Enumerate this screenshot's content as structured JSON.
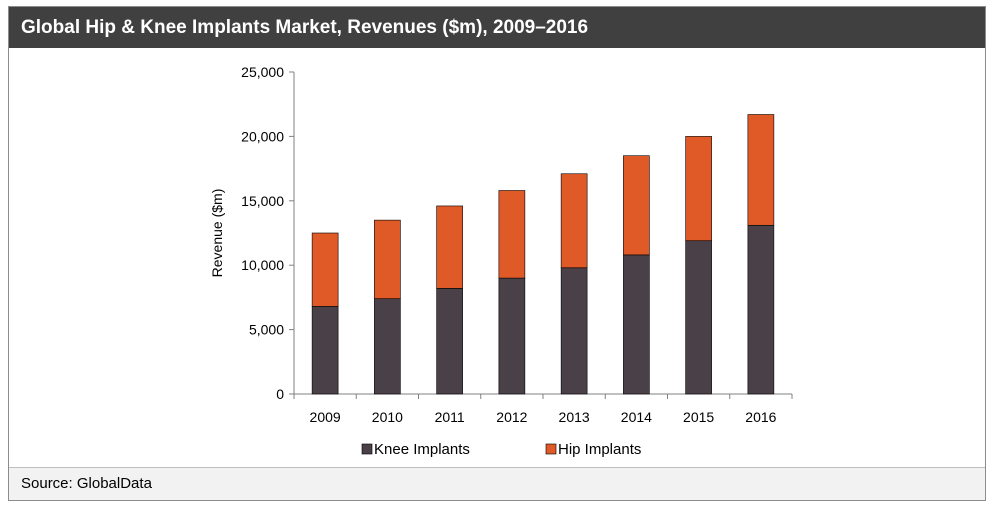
{
  "header": {
    "title": "Global Hip  & Knee Implants Market, Revenues ($m), 2009–2016"
  },
  "footer": {
    "source": "Source: GlobalData"
  },
  "colors": {
    "knee": "#4a4048",
    "hip": "#e05a28",
    "title_bg": "#404040"
  },
  "chart_data": {
    "type": "bar",
    "stacked": true,
    "categories": [
      "2009",
      "2010",
      "2011",
      "2012",
      "2013",
      "2014",
      "2015",
      "2016"
    ],
    "series": [
      {
        "name": "Knee Implants",
        "values": [
          6800,
          7400,
          8200,
          9000,
          9800,
          10800,
          11900,
          13100
        ]
      },
      {
        "name": "Hip Implants",
        "values": [
          5700,
          6100,
          6400,
          6800,
          7300,
          7700,
          8100,
          8600
        ]
      }
    ],
    "ylabel": "Revenue ($m)",
    "xlabel": "",
    "ylim": [
      0,
      25000
    ],
    "yticks": [
      0,
      5000,
      10000,
      15000,
      20000,
      25000
    ],
    "ytick_labels": [
      "0",
      "5,000",
      "10,000",
      "15,000",
      "20,000",
      "25,000"
    ],
    "legend_position": "bottom",
    "grid": false
  }
}
